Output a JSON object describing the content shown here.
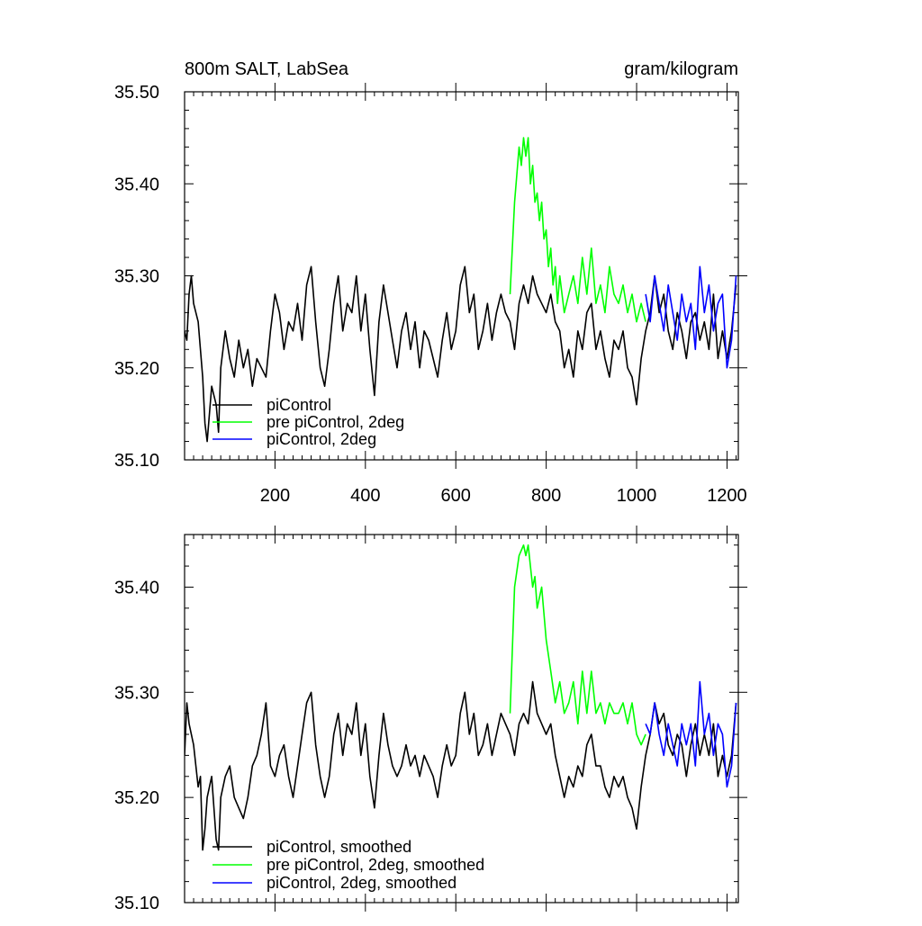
{
  "chart_data": [
    {
      "type": "line",
      "title": "800m SALT, LabSea",
      "units": "gram/kilogram",
      "xlim": [
        0,
        1225
      ],
      "ylim": [
        35.1,
        35.5
      ],
      "x_ticks": [
        200,
        400,
        600,
        800,
        1000,
        1200
      ],
      "x_tick_labels": [
        "200",
        "400",
        "600",
        "800",
        "1000",
        "1200"
      ],
      "y_ticks": [
        35.1,
        35.2,
        35.3,
        35.4,
        35.5
      ],
      "y_tick_labels": [
        "35.10",
        "35.20",
        "35.30",
        "35.40",
        "35.50"
      ],
      "legend_location": "lower-left",
      "series": [
        {
          "name": "piControl",
          "color": "#000000",
          "x": [
            0,
            5,
            10,
            15,
            20,
            30,
            40,
            45,
            50,
            60,
            70,
            75,
            80,
            90,
            100,
            110,
            120,
            130,
            140,
            150,
            160,
            170,
            180,
            190,
            200,
            210,
            220,
            230,
            240,
            250,
            260,
            270,
            280,
            290,
            300,
            310,
            320,
            330,
            340,
            350,
            360,
            370,
            380,
            390,
            400,
            410,
            420,
            430,
            440,
            450,
            460,
            470,
            480,
            490,
            500,
            510,
            520,
            530,
            540,
            550,
            560,
            570,
            580,
            590,
            600,
            610,
            620,
            630,
            640,
            650,
            660,
            670,
            680,
            690,
            700,
            710,
            720,
            730,
            740,
            750,
            760,
            770,
            780,
            790,
            800,
            810,
            820,
            830,
            840,
            850,
            860,
            870,
            880,
            890,
            900,
            910,
            920,
            930,
            940,
            950,
            960,
            970,
            980,
            990,
            1000,
            1010,
            1020,
            1030,
            1040,
            1050,
            1060,
            1070,
            1080,
            1090,
            1100,
            1110,
            1120,
            1130,
            1140,
            1150,
            1160,
            1170,
            1180,
            1190,
            1200,
            1210,
            1220
          ],
          "values": [
            35.24,
            35.23,
            35.28,
            35.3,
            35.27,
            35.25,
            35.19,
            35.14,
            35.12,
            35.18,
            35.16,
            35.13,
            35.2,
            35.24,
            35.21,
            35.19,
            35.23,
            35.2,
            35.22,
            35.18,
            35.21,
            35.2,
            35.19,
            35.24,
            35.28,
            35.26,
            35.22,
            35.25,
            35.24,
            35.27,
            35.23,
            35.29,
            35.31,
            35.25,
            35.2,
            35.18,
            35.22,
            35.27,
            35.3,
            35.24,
            35.27,
            35.26,
            35.3,
            35.24,
            35.28,
            35.22,
            35.17,
            35.25,
            35.29,
            35.26,
            35.23,
            35.2,
            35.24,
            35.26,
            35.22,
            35.25,
            35.2,
            35.24,
            35.23,
            35.21,
            35.19,
            35.23,
            35.26,
            35.22,
            35.24,
            35.29,
            35.31,
            35.26,
            35.28,
            35.22,
            35.24,
            35.27,
            35.23,
            35.26,
            35.28,
            35.26,
            35.25,
            35.22,
            35.27,
            35.29,
            35.27,
            35.3,
            35.28,
            35.27,
            35.26,
            35.28,
            35.25,
            35.24,
            35.2,
            35.22,
            35.19,
            35.24,
            35.22,
            35.26,
            35.27,
            35.22,
            35.24,
            35.21,
            35.19,
            35.23,
            35.22,
            35.24,
            35.2,
            35.19,
            35.16,
            35.21,
            35.24,
            35.26,
            35.3,
            35.26,
            35.28,
            35.24,
            35.22,
            35.26,
            35.24,
            35.21,
            35.25,
            35.26,
            35.23,
            35.25,
            35.22,
            35.28,
            35.21,
            35.24,
            35.21,
            35.24,
            35.29
          ]
        },
        {
          "name": "pre piControl, 2deg",
          "color": "#00ff00",
          "x": [
            720,
            730,
            740,
            745,
            750,
            755,
            760,
            765,
            770,
            775,
            780,
            785,
            790,
            795,
            800,
            805,
            810,
            815,
            820,
            825,
            830,
            840,
            850,
            860,
            870,
            880,
            890,
            900,
            910,
            920,
            930,
            940,
            950,
            960,
            970,
            980,
            990,
            1000,
            1010,
            1020
          ],
          "values": [
            35.28,
            35.38,
            35.44,
            35.42,
            35.45,
            35.43,
            35.45,
            35.4,
            35.42,
            35.38,
            35.39,
            35.36,
            35.38,
            35.34,
            35.35,
            35.31,
            35.33,
            35.29,
            35.31,
            35.27,
            35.3,
            35.26,
            35.28,
            35.3,
            35.27,
            35.32,
            35.28,
            35.33,
            35.27,
            35.29,
            35.26,
            35.31,
            35.28,
            35.27,
            35.29,
            35.26,
            35.28,
            35.25,
            35.27,
            35.25
          ]
        },
        {
          "name": "piControl, 2deg",
          "color": "#0000ff",
          "x": [
            1020,
            1030,
            1040,
            1050,
            1060,
            1070,
            1080,
            1090,
            1100,
            1110,
            1120,
            1130,
            1140,
            1150,
            1160,
            1170,
            1180,
            1190,
            1200,
            1210,
            1220
          ],
          "values": [
            35.28,
            35.25,
            35.3,
            35.27,
            35.24,
            35.29,
            35.26,
            35.23,
            35.28,
            35.25,
            35.27,
            35.22,
            35.31,
            35.26,
            35.29,
            35.24,
            35.27,
            35.28,
            35.2,
            35.23,
            35.3
          ]
        }
      ]
    },
    {
      "type": "line",
      "xlim": [
        0,
        1225
      ],
      "ylim": [
        35.1,
        35.45
      ],
      "y_ticks": [
        35.1,
        35.2,
        35.3,
        35.4
      ],
      "y_tick_labels": [
        "35.10",
        "35.20",
        "35.30",
        "35.40"
      ],
      "x_ticks": [
        200,
        400,
        600,
        800,
        1000,
        1200
      ],
      "legend_location": "lower-left",
      "series": [
        {
          "name": "piControl, smoothed",
          "color": "#000000",
          "x": [
            0,
            5,
            10,
            20,
            30,
            35,
            40,
            45,
            50,
            60,
            70,
            75,
            80,
            90,
            100,
            110,
            120,
            130,
            140,
            150,
            160,
            170,
            180,
            190,
            200,
            210,
            220,
            230,
            240,
            250,
            260,
            270,
            280,
            290,
            300,
            310,
            320,
            330,
            340,
            350,
            360,
            370,
            380,
            390,
            400,
            410,
            420,
            430,
            440,
            450,
            460,
            470,
            480,
            490,
            500,
            510,
            520,
            530,
            540,
            550,
            560,
            570,
            580,
            590,
            600,
            610,
            620,
            630,
            640,
            650,
            660,
            670,
            680,
            690,
            700,
            710,
            720,
            730,
            740,
            750,
            760,
            770,
            780,
            790,
            800,
            810,
            820,
            830,
            840,
            850,
            860,
            870,
            880,
            890,
            900,
            910,
            920,
            930,
            940,
            950,
            960,
            970,
            980,
            990,
            1000,
            1010,
            1020,
            1030,
            1040,
            1050,
            1060,
            1070,
            1080,
            1090,
            1100,
            1110,
            1120,
            1130,
            1140,
            1150,
            1160,
            1170,
            1180,
            1190,
            1200,
            1210,
            1220
          ],
          "values": [
            35.24,
            35.29,
            35.27,
            35.25,
            35.21,
            35.22,
            35.15,
            35.17,
            35.2,
            35.22,
            35.16,
            35.15,
            35.2,
            35.22,
            35.23,
            35.2,
            35.19,
            35.18,
            35.2,
            35.23,
            35.24,
            35.26,
            35.29,
            35.23,
            35.22,
            35.24,
            35.25,
            35.22,
            35.2,
            35.23,
            35.26,
            35.29,
            35.3,
            35.25,
            35.22,
            35.2,
            35.22,
            35.26,
            35.28,
            35.24,
            35.27,
            35.26,
            35.29,
            35.24,
            35.27,
            35.22,
            35.19,
            35.24,
            35.28,
            35.25,
            35.23,
            35.22,
            35.23,
            35.25,
            35.23,
            35.24,
            35.22,
            35.24,
            35.23,
            35.22,
            35.2,
            35.23,
            35.25,
            35.23,
            35.24,
            35.28,
            35.3,
            35.26,
            35.28,
            35.24,
            35.25,
            35.27,
            35.24,
            35.26,
            35.28,
            35.27,
            35.26,
            35.24,
            35.27,
            35.28,
            35.27,
            35.31,
            35.28,
            35.27,
            35.26,
            35.27,
            35.24,
            35.22,
            35.2,
            35.22,
            35.21,
            35.23,
            35.22,
            35.25,
            35.26,
            35.23,
            35.23,
            35.21,
            35.2,
            35.22,
            35.21,
            35.22,
            35.2,
            35.19,
            35.17,
            35.21,
            35.24,
            35.26,
            35.29,
            35.27,
            35.28,
            35.25,
            35.24,
            35.26,
            35.25,
            35.22,
            35.25,
            35.27,
            35.24,
            35.26,
            35.24,
            35.27,
            35.22,
            35.24,
            35.22,
            35.24,
            35.29
          ]
        },
        {
          "name": "pre piControl, 2deg, smoothed",
          "color": "#00ff00",
          "x": [
            720,
            730,
            740,
            750,
            755,
            760,
            770,
            775,
            780,
            790,
            800,
            810,
            820,
            830,
            840,
            850,
            860,
            870,
            880,
            890,
            900,
            910,
            920,
            930,
            940,
            950,
            960,
            970,
            980,
            990,
            1000,
            1010,
            1020
          ],
          "values": [
            35.28,
            35.4,
            35.43,
            35.44,
            35.43,
            35.44,
            35.4,
            35.41,
            35.38,
            35.4,
            35.35,
            35.32,
            35.29,
            35.31,
            35.28,
            35.29,
            35.31,
            35.27,
            35.32,
            35.28,
            35.32,
            35.28,
            35.29,
            35.27,
            35.29,
            35.28,
            35.28,
            35.29,
            35.27,
            35.29,
            35.26,
            35.25,
            35.26
          ]
        },
        {
          "name": "piControl, 2deg, smoothed",
          "color": "#0000ff",
          "x": [
            1020,
            1030,
            1040,
            1050,
            1060,
            1070,
            1080,
            1090,
            1100,
            1110,
            1120,
            1130,
            1140,
            1150,
            1160,
            1170,
            1180,
            1190,
            1200,
            1210,
            1220
          ],
          "values": [
            35.27,
            35.26,
            35.29,
            35.26,
            35.24,
            35.27,
            35.25,
            35.23,
            35.27,
            35.25,
            35.27,
            35.23,
            35.31,
            35.26,
            35.28,
            35.24,
            35.27,
            35.26,
            35.21,
            35.23,
            35.29
          ]
        }
      ]
    }
  ]
}
